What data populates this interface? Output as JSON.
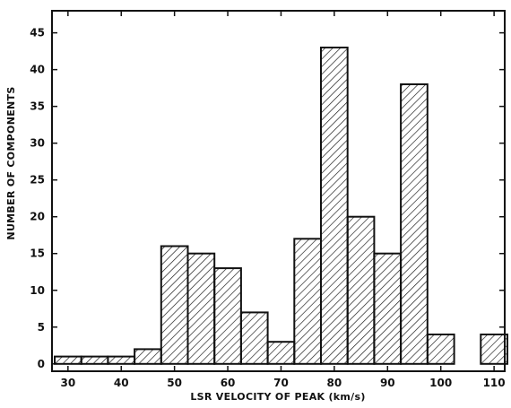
{
  "chart_data": {
    "type": "bar",
    "title": "",
    "xlabel": "LSR VELOCITY OF PEAK (km/s)",
    "ylabel": "NUMBER OF COMPONENTS",
    "xlim": [
      27,
      112
    ],
    "ylim": [
      -1,
      48
    ],
    "bin_width": 5,
    "x": [
      30,
      35,
      40,
      45,
      50,
      55,
      60,
      65,
      70,
      75,
      80,
      85,
      90,
      95,
      100,
      105,
      110
    ],
    "values": [
      1,
      1,
      1,
      2,
      16,
      15,
      13,
      7,
      3,
      17,
      43,
      20,
      15,
      38,
      4,
      0,
      4
    ],
    "xticks": [
      "30",
      "40",
      "50",
      "60",
      "70",
      "80",
      "90",
      "100",
      "110"
    ],
    "yticks": [
      "0",
      "5",
      "10",
      "15",
      "20",
      "25",
      "30",
      "35",
      "40",
      "45"
    ],
    "grid": false,
    "fill": "diagonal-hatch",
    "colors": {
      "bar_stroke": "#111111",
      "hatch": "#111111",
      "background": "#ffffff"
    }
  }
}
